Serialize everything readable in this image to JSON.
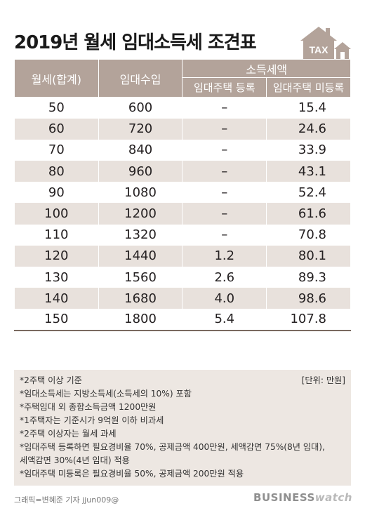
{
  "title": "2019년 월세 임대소득세 조견표",
  "icon": {
    "name": "house-tax-icon",
    "label": "TAX",
    "color": "#b3a39a"
  },
  "table": {
    "headers": {
      "col1": "월세(합계)",
      "col2": "임대수입",
      "group": "소득세액",
      "sub1": "임대주택 등록",
      "sub2": "임대주택 미등록"
    },
    "rows": [
      {
        "rent": "50",
        "income": "600",
        "registered": "–",
        "unregistered": "15.4"
      },
      {
        "rent": "60",
        "income": "720",
        "registered": "–",
        "unregistered": "24.6"
      },
      {
        "rent": "70",
        "income": "840",
        "registered": "–",
        "unregistered": "33.9"
      },
      {
        "rent": "80",
        "income": "960",
        "registered": "–",
        "unregistered": "43.1"
      },
      {
        "rent": "90",
        "income": "1080",
        "registered": "–",
        "unregistered": "52.4"
      },
      {
        "rent": "100",
        "income": "1200",
        "registered": "–",
        "unregistered": "61.6"
      },
      {
        "rent": "110",
        "income": "1320",
        "registered": "–",
        "unregistered": "70.8"
      },
      {
        "rent": "120",
        "income": "1440",
        "registered": "1.2",
        "unregistered": "80.1"
      },
      {
        "rent": "130",
        "income": "1560",
        "registered": "2.6",
        "unregistered": "89.3"
      },
      {
        "rent": "140",
        "income": "1680",
        "registered": "4.0",
        "unregistered": "98.6"
      },
      {
        "rent": "150",
        "income": "1800",
        "registered": "5.4",
        "unregistered": "107.8"
      }
    ]
  },
  "notes": {
    "unit": "[단위: 만원]",
    "lines": [
      "*2주택 이상 기준",
      "*임대소득세는 지방소득세(소득세의 10%) 포함",
      "*주택임대 외 종합소득금액 1200만원",
      "*1주택자는 기준시가 9억원 이하 비과세",
      "*2주택 이상자는 월세 과세",
      "*임대주택 등록하면 필요경비율 70%, 공제금액 400만원, 세액감면 75%(8년 임대),",
      "  세액감면 30%(4년 임대) 적용",
      "*임대주택 미등록은 필요경비율 50%, 공제금액 200만원 적용"
    ]
  },
  "footer": {
    "credit": "그래픽=변혜준 기자 jjun009@",
    "brand_bold": "BUSINESS",
    "brand_light": "watch"
  },
  "colors": {
    "header_bg": "#b3a39a",
    "stripe": "#e8e1dc",
    "notes_bg": "#ede7e2"
  }
}
